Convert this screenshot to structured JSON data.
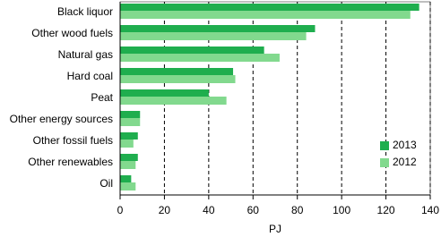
{
  "chart_data": {
    "type": "hbar",
    "categories": [
      "Black liquor",
      "Other wood fuels",
      "Natural gas",
      "Hard coal",
      "Peat",
      "Other energy sources",
      "Other fossil fuels",
      "Other renewables",
      "Oil"
    ],
    "series": [
      {
        "name": "2013",
        "color": "#1fae4e",
        "values": [
          135,
          88,
          65,
          51,
          40,
          9,
          8,
          8,
          5
        ]
      },
      {
        "name": "2012",
        "color": "#82d98e",
        "values": [
          131,
          84,
          72,
          52,
          48,
          9,
          6,
          7,
          7
        ]
      }
    ],
    "xlim": [
      0,
      140
    ],
    "xticks": [
      0,
      20,
      40,
      60,
      80,
      100,
      120,
      140
    ],
    "xlabel": "PJ",
    "grid": true,
    "legend": "lower right"
  }
}
